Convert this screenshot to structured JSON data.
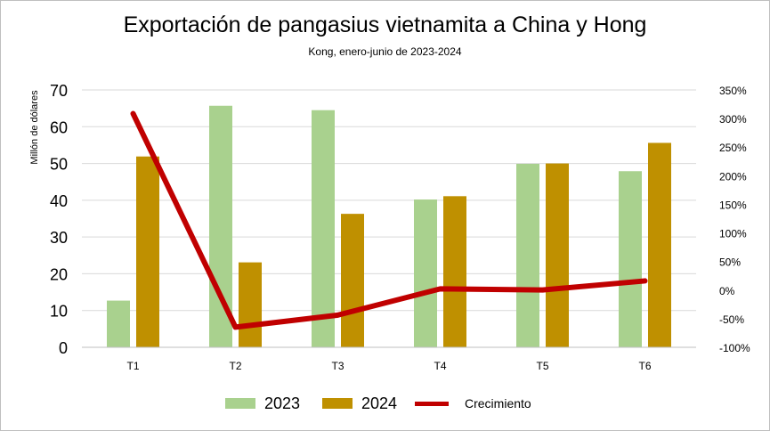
{
  "title": "Exportación de pangasius vietnamita a China y Hong",
  "subtitle": "Kong, enero-junio de 2023-2024",
  "colors": {
    "s2023": "#a9d18e",
    "s2024": "#bf9000",
    "growth": "#c00000",
    "grid": "#d9d9d9",
    "axis": "#bfbfbf"
  },
  "legend": {
    "s2023": "2023",
    "s2024": "2024",
    "growth": "Crecimiento"
  },
  "chart_data": {
    "type": "bar",
    "title": "Exportación de pangasius vietnamita a China y Hong",
    "subtitle": "Kong, enero-junio de 2023-2024",
    "categories": [
      "T1",
      "T2",
      "T3",
      "T4",
      "T5",
      "T6"
    ],
    "ylabel": "Millón de dólares",
    "ylim": [
      0,
      70
    ],
    "yticks": [
      "0",
      "10",
      "20",
      "30",
      "40",
      "50",
      "60",
      "70"
    ],
    "y2lim": [
      -100,
      350
    ],
    "y2ticks": [
      "-100%",
      "-50%",
      "0%",
      "50%",
      "100%",
      "150%",
      "200%",
      "250%",
      "300%",
      "350%"
    ],
    "grid": true,
    "legend_position": "bottom",
    "series": [
      {
        "name": "2023",
        "type": "bar",
        "axis": "left",
        "values": [
          12.7,
          65.7,
          64.5,
          40.2,
          49.9,
          47.9
        ]
      },
      {
        "name": "2024",
        "type": "bar",
        "axis": "left",
        "values": [
          51.9,
          23.1,
          36.3,
          41.1,
          50.0,
          55.6
        ]
      },
      {
        "name": "Crecimiento",
        "type": "line",
        "axis": "right",
        "values": [
          308.7,
          -64.8,
          -43.7,
          2.2,
          0.2,
          16.1
        ]
      }
    ]
  }
}
